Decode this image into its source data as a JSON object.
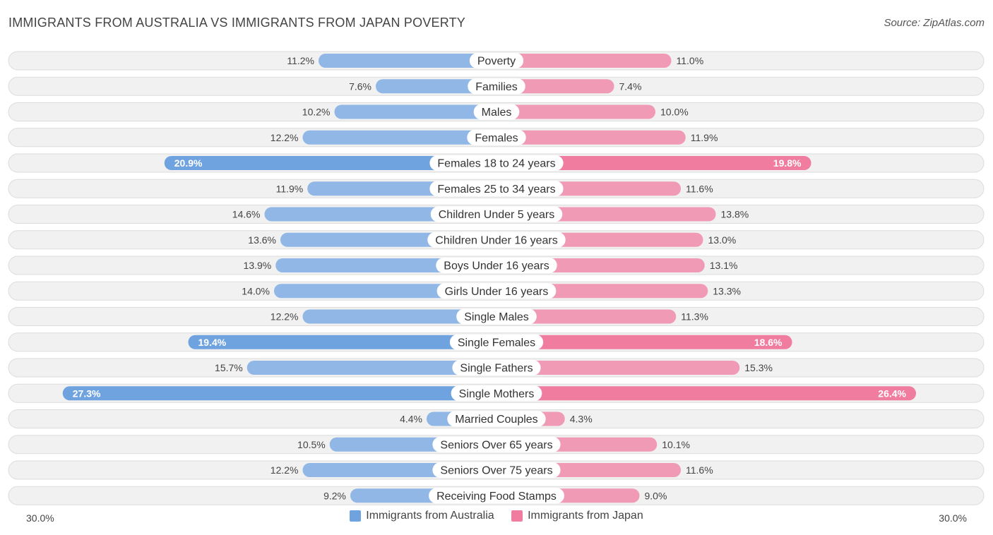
{
  "chart_data": {
    "type": "bar",
    "orientation": "horizontal-diverging",
    "title": "IMMIGRANTS FROM AUSTRALIA VS IMMIGRANTS FROM JAPAN POVERTY",
    "source": "Source: ZipAtlas.com",
    "categories": [
      "Poverty",
      "Families",
      "Males",
      "Females",
      "Females 18 to 24 years",
      "Females 25 to 34 years",
      "Children Under 5 years",
      "Children Under 16 years",
      "Boys Under 16 years",
      "Girls Under 16 years",
      "Single Males",
      "Single Females",
      "Single Fathers",
      "Single Mothers",
      "Married Couples",
      "Seniors Over 65 years",
      "Seniors Over 75 years",
      "Receiving Food Stamps"
    ],
    "series": [
      {
        "name": "Immigrants from Australia",
        "color": "#6fa3e0",
        "values": [
          11.2,
          7.6,
          10.2,
          12.2,
          20.9,
          11.9,
          14.6,
          13.6,
          13.9,
          14.0,
          12.2,
          19.4,
          15.7,
          27.3,
          4.4,
          10.5,
          12.2,
          9.2
        ],
        "labels": [
          "11.2%",
          "7.6%",
          "10.2%",
          "12.2%",
          "20.9%",
          "11.9%",
          "14.6%",
          "13.6%",
          "13.9%",
          "14.0%",
          "12.2%",
          "19.4%",
          "15.7%",
          "27.3%",
          "4.4%",
          "10.5%",
          "12.2%",
          "9.2%"
        ]
      },
      {
        "name": "Immigrants from Japan",
        "color": "#f07ca0",
        "values": [
          11.0,
          7.4,
          10.0,
          11.9,
          19.8,
          11.6,
          13.8,
          13.0,
          13.1,
          13.3,
          11.3,
          18.6,
          15.3,
          26.4,
          4.3,
          10.1,
          11.6,
          9.0
        ],
        "labels": [
          "11.0%",
          "7.4%",
          "10.0%",
          "11.9%",
          "19.8%",
          "11.6%",
          "13.8%",
          "13.0%",
          "13.1%",
          "13.3%",
          "11.3%",
          "18.6%",
          "15.3%",
          "26.4%",
          "4.3%",
          "10.1%",
          "11.6%",
          "9.0%"
        ]
      }
    ],
    "xlim": [
      0,
      30
    ],
    "axis_labels": {
      "left": "30.0%",
      "right": "30.0%"
    },
    "legend_position": "bottom-center"
  }
}
